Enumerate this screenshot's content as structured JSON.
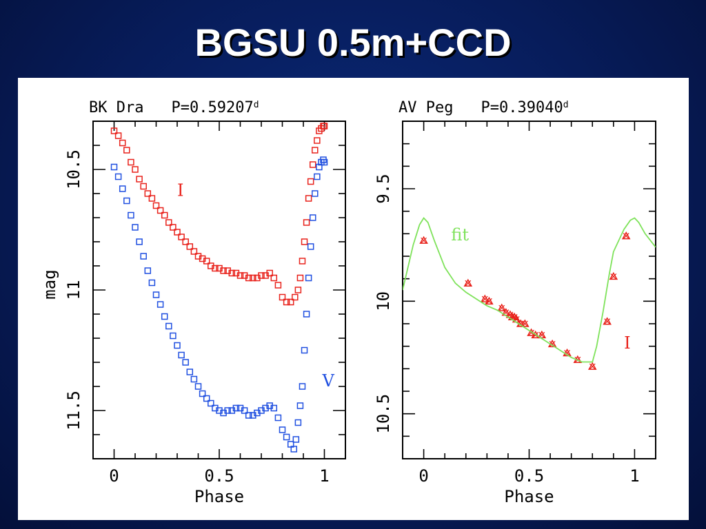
{
  "slide": {
    "title": "BGSU 0.5m+CCD"
  },
  "colors": {
    "red": "#e8211a",
    "blue": "#1f4fe0",
    "green": "#7ee25a"
  },
  "chart_data": [
    {
      "type": "scatter",
      "title_star": "BK Dra",
      "title_period": "P=0.59207",
      "title_sup": "d",
      "xlabel": "Phase",
      "ylabel": "mag",
      "xlim": [
        -0.1,
        1.1
      ],
      "ylim": [
        10.3,
        11.7
      ],
      "y_inverted": true,
      "xticks": [
        0,
        0.5,
        1
      ],
      "xtick_labels": [
        "0",
        "0.5",
        "1"
      ],
      "yticks": [
        10.5,
        11,
        11.5
      ],
      "ytick_labels": [
        "10.5",
        "11",
        "11.5"
      ],
      "series": [
        {
          "name": "I",
          "color": "#e8211a",
          "label_pos": [
            0.3,
            10.61
          ],
          "x": [
            0.0,
            0.02,
            0.04,
            0.06,
            0.08,
            0.1,
            0.12,
            0.14,
            0.16,
            0.18,
            0.2,
            0.22,
            0.24,
            0.26,
            0.28,
            0.3,
            0.32,
            0.34,
            0.36,
            0.38,
            0.4,
            0.42,
            0.44,
            0.46,
            0.48,
            0.5,
            0.52,
            0.54,
            0.56,
            0.58,
            0.6,
            0.62,
            0.64,
            0.66,
            0.68,
            0.7,
            0.72,
            0.74,
            0.76,
            0.78,
            0.8,
            0.82,
            0.84,
            0.86,
            0.875,
            0.885,
            0.895,
            0.905,
            0.915,
            0.925,
            0.935,
            0.945,
            0.955,
            0.965,
            0.975,
            0.985,
            0.995,
            1.0
          ],
          "y": [
            10.34,
            10.36,
            10.39,
            10.42,
            10.47,
            10.5,
            10.54,
            10.57,
            10.6,
            10.62,
            10.65,
            10.67,
            10.69,
            10.72,
            10.74,
            10.76,
            10.78,
            10.8,
            10.82,
            10.84,
            10.86,
            10.87,
            10.88,
            10.9,
            10.91,
            10.91,
            10.92,
            10.92,
            10.93,
            10.93,
            10.94,
            10.94,
            10.95,
            10.95,
            10.95,
            10.94,
            10.94,
            10.93,
            10.95,
            10.98,
            11.03,
            11.05,
            11.05,
            11.03,
            11.0,
            10.95,
            10.88,
            10.8,
            10.72,
            10.62,
            10.55,
            10.48,
            10.42,
            10.38,
            10.34,
            10.33,
            10.32,
            10.32
          ]
        },
        {
          "name": "V",
          "color": "#1f4fe0",
          "label_pos": [
            0.99,
            11.4
          ],
          "x": [
            0.0,
            0.02,
            0.04,
            0.06,
            0.08,
            0.1,
            0.12,
            0.14,
            0.16,
            0.18,
            0.2,
            0.22,
            0.24,
            0.26,
            0.28,
            0.3,
            0.32,
            0.34,
            0.36,
            0.38,
            0.4,
            0.42,
            0.44,
            0.46,
            0.48,
            0.5,
            0.52,
            0.54,
            0.56,
            0.58,
            0.6,
            0.62,
            0.64,
            0.66,
            0.68,
            0.7,
            0.72,
            0.74,
            0.76,
            0.78,
            0.8,
            0.82,
            0.84,
            0.855,
            0.865,
            0.875,
            0.885,
            0.895,
            0.905,
            0.915,
            0.925,
            0.935,
            0.945,
            0.955,
            0.965,
            0.975,
            0.985,
            0.995,
            1.0
          ],
          "y": [
            10.49,
            10.53,
            10.58,
            10.63,
            10.69,
            10.74,
            10.8,
            10.86,
            10.92,
            10.97,
            11.02,
            11.06,
            11.11,
            11.15,
            11.19,
            11.23,
            11.27,
            11.3,
            11.34,
            11.37,
            11.4,
            11.43,
            11.45,
            11.47,
            11.49,
            11.5,
            11.51,
            11.5,
            11.5,
            11.49,
            11.49,
            11.5,
            11.52,
            11.52,
            11.51,
            11.5,
            11.49,
            11.48,
            11.49,
            11.53,
            11.58,
            11.61,
            11.64,
            11.66,
            11.62,
            11.55,
            11.48,
            11.4,
            11.25,
            11.1,
            10.95,
            10.82,
            10.7,
            10.6,
            10.53,
            10.49,
            10.47,
            10.46,
            10.47
          ]
        }
      ]
    },
    {
      "type": "scatter",
      "title_star": "AV Peg",
      "title_period": "P=0.39040",
      "title_sup": "d",
      "xlabel": "Phase",
      "xlim": [
        -0.1,
        1.1
      ],
      "ylim": [
        9.2,
        10.7
      ],
      "y_inverted": true,
      "xticks": [
        0,
        0.5,
        1
      ],
      "xtick_labels": [
        "0",
        "0.5",
        "1"
      ],
      "yticks": [
        9.5,
        10,
        10.5
      ],
      "ytick_labels": [
        "9.5",
        "10",
        "10.5"
      ],
      "series": [
        {
          "name": "I",
          "color": "#e8211a",
          "label_pos": [
            0.95,
            10.21
          ],
          "x": [
            0.0,
            0.21,
            0.29,
            0.31,
            0.37,
            0.39,
            0.41,
            0.42,
            0.43,
            0.44,
            0.46,
            0.48,
            0.51,
            0.53,
            0.56,
            0.61,
            0.68,
            0.73,
            0.8,
            0.87,
            0.9,
            0.96
          ],
          "y": [
            9.73,
            9.92,
            9.99,
            10.0,
            10.03,
            10.05,
            10.06,
            10.07,
            10.07,
            10.08,
            10.1,
            10.1,
            10.14,
            10.15,
            10.15,
            10.19,
            10.23,
            10.26,
            10.29,
            10.09,
            9.89,
            9.71
          ]
        },
        {
          "name": "fit",
          "type": "line",
          "color": "#7ee25a",
          "label_pos": [
            0.13,
            9.73
          ],
          "x": [
            -0.1,
            -0.05,
            -0.02,
            0.0,
            0.02,
            0.05,
            0.1,
            0.15,
            0.2,
            0.25,
            0.3,
            0.35,
            0.4,
            0.45,
            0.5,
            0.55,
            0.6,
            0.65,
            0.7,
            0.75,
            0.8,
            0.82,
            0.85,
            0.88,
            0.9,
            0.95,
            0.98,
            1.0,
            1.02,
            1.05,
            1.1
          ],
          "y": [
            9.95,
            9.75,
            9.66,
            9.63,
            9.65,
            9.73,
            9.85,
            9.92,
            9.96,
            9.99,
            10.02,
            10.04,
            10.07,
            10.1,
            10.13,
            10.16,
            10.19,
            10.22,
            10.25,
            10.27,
            10.27,
            10.2,
            10.05,
            9.88,
            9.78,
            9.68,
            9.64,
            9.63,
            9.65,
            9.7,
            9.76
          ]
        }
      ]
    }
  ]
}
